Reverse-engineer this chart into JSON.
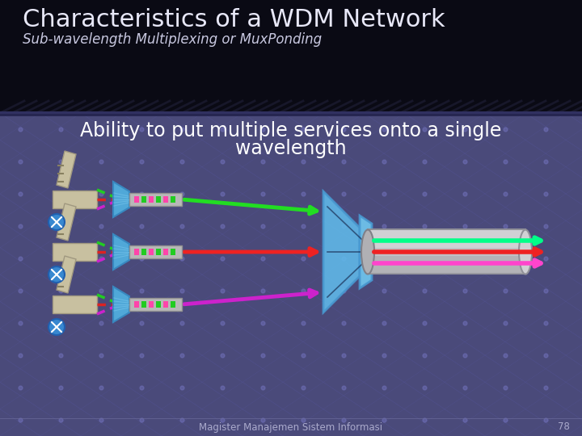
{
  "title": "Characteristics of a WDM Network",
  "subtitle": "Sub-wavelength Multiplexing or MuxPonding",
  "body_text_line1": "Ability to put multiple services onto a single",
  "body_text_line2": "wavelength",
  "footer_text": "Magister Manajemen Sistem Informasi",
  "page_number": "78",
  "header_bg": "#0a0a14",
  "body_bg_top": "#4a4a7a",
  "body_bg_bot": "#3a3a68",
  "title_color": "#e8e8f8",
  "subtitle_color": "#c8c8e0",
  "body_text_color": "#ffffff",
  "footer_color": "#aaaacc",
  "green_line": "#22dd22",
  "red_line": "#ee2222",
  "magenta_line": "#cc22cc",
  "bright_green": "#00ff88",
  "bright_magenta": "#ff44cc",
  "mux_color": "#60b8e0",
  "fiber_color": "#c8c8c8",
  "tx_lens_color": "#50a8d0",
  "tx_body_color": "#c8c0a0",
  "figsize": [
    7.2,
    5.4
  ],
  "dpi": 100
}
